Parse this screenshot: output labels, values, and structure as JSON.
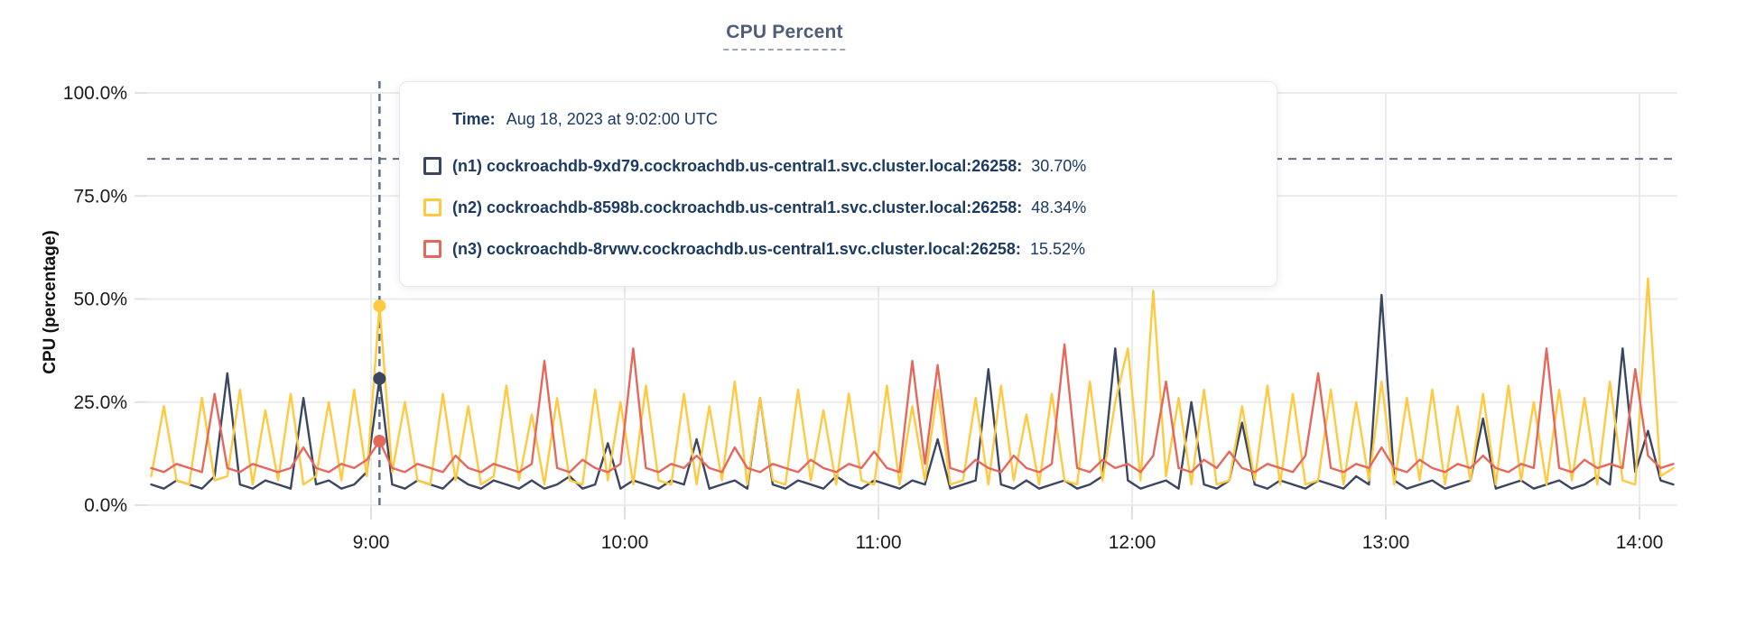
{
  "title": "CPU Percent",
  "y_axis_title": "CPU (percentage)",
  "tooltip": {
    "time_label": "Time:",
    "time_value": "Aug 18, 2023 at 9:02:00 UTC",
    "series": [
      {
        "label": "(n1) cockroachdb-9xd79.cockroachdb.us-central1.svc.cluster.local:26258:",
        "value": "30.70%"
      },
      {
        "label": "(n2) cockroachdb-8598b.cockroachdb.us-central1.svc.cluster.local:26258:",
        "value": "48.34%"
      },
      {
        "label": "(n3) cockroachdb-8rvwv.cockroachdb.us-central1.svc.cluster.local:26258:",
        "value": "15.52%"
      }
    ]
  },
  "colors": {
    "title": "#4e5d78",
    "tooltip_text": "#1c3a63",
    "grid": "#ebebeb",
    "tick": "#e0e0e0",
    "axis_label": "#1b1b1b",
    "dashed_line": "#5b6e8c"
  },
  "chart_data": {
    "type": "line",
    "title": "CPU Percent",
    "xlabel": "",
    "ylabel": "CPU (percentage)",
    "ylim": [
      0,
      100
    ],
    "y_ticks": [
      "100.0%",
      "75.0%",
      "50.0%",
      "25.0%",
      "0.0%"
    ],
    "x_ticks": [
      "9:00",
      "10:00",
      "11:00",
      "12:00",
      "13:00",
      "14:00"
    ],
    "grid": true,
    "legend_position": "tooltip",
    "threshold_percent": 84,
    "x_start": "8:08",
    "step_minutes": 3,
    "hover": {
      "time": "9:02",
      "time_display": "Aug 18, 2023 at 9:02:00 UTC"
    },
    "series": [
      {
        "name": "(n1) cockroachdb-9xd79.cockroachdb.us-central1.svc.cluster.local:26258",
        "color": "#3b4660",
        "hover_value": 30.7,
        "values": [
          5,
          4,
          6,
          5,
          4,
          7,
          32,
          5,
          4,
          6,
          5,
          4,
          26,
          5,
          6,
          4,
          5,
          8,
          30.7,
          5,
          4,
          6,
          5,
          4,
          7,
          5,
          4,
          6,
          5,
          4,
          6,
          4,
          5,
          7,
          4,
          5,
          15,
          4,
          6,
          5,
          4,
          6,
          5,
          16,
          4,
          5,
          6,
          4,
          26,
          5,
          4,
          6,
          5,
          4,
          7,
          5,
          4,
          6,
          5,
          4,
          6,
          5,
          16,
          4,
          5,
          6,
          33,
          5,
          4,
          6,
          4,
          5,
          6,
          4,
          5,
          7,
          38,
          6,
          4,
          5,
          6,
          4,
          25,
          5,
          4,
          6,
          20,
          5,
          4,
          6,
          5,
          4,
          6,
          5,
          4,
          7,
          5,
          51,
          6,
          4,
          5,
          6,
          4,
          5,
          6,
          21,
          4,
          5,
          6,
          4,
          5,
          6,
          4,
          5,
          7,
          5,
          38,
          8,
          18,
          6,
          5
        ]
      },
      {
        "name": "(n2) cockroachdb-8598b.cockroachdb.us-central1.svc.cluster.local:26258",
        "color": "#ffc940",
        "hover_value": 48.34,
        "values": [
          7,
          24,
          6,
          5,
          26,
          6,
          7,
          28,
          5,
          23,
          6,
          27,
          5,
          7,
          25,
          6,
          28,
          7,
          48.34,
          8,
          25,
          6,
          5,
          27,
          6,
          24,
          5,
          7,
          29,
          6,
          22,
          5,
          26,
          6,
          5,
          28,
          6,
          25,
          5,
          29,
          6,
          5,
          27,
          5,
          24,
          6,
          30,
          5,
          26,
          6,
          5,
          28,
          6,
          23,
          5,
          27,
          6,
          5,
          29,
          5,
          24,
          6,
          28,
          5,
          6,
          26,
          5,
          29,
          6,
          22,
          5,
          27,
          6,
          5,
          30,
          6,
          25,
          38,
          6,
          52,
          7,
          26,
          5,
          28,
          5,
          6,
          24,
          6,
          29,
          5,
          27,
          5,
          6,
          28,
          5,
          25,
          6,
          30,
          5,
          26,
          6,
          28,
          5,
          24,
          6,
          27,
          5,
          29,
          6,
          25,
          5,
          28,
          6,
          26,
          5,
          30,
          6,
          5,
          55,
          7,
          9
        ]
      },
      {
        "name": "(n3) cockroachdb-8rvwv.cockroachdb.us-central1.svc.cluster.local:26258",
        "color": "#e5685c",
        "hover_value": 15.52,
        "values": [
          9,
          8,
          10,
          9,
          8,
          27,
          9,
          8,
          10,
          9,
          8,
          9,
          14,
          9,
          8,
          10,
          9,
          11,
          15.52,
          9,
          8,
          10,
          9,
          8,
          12,
          9,
          8,
          10,
          9,
          8,
          10,
          35,
          9,
          8,
          11,
          9,
          8,
          10,
          38,
          9,
          8,
          10,
          9,
          12,
          9,
          8,
          14,
          9,
          8,
          10,
          9,
          8,
          11,
          9,
          8,
          10,
          9,
          13,
          9,
          8,
          35,
          10,
          34,
          9,
          8,
          11,
          9,
          8,
          12,
          9,
          8,
          10,
          39,
          9,
          8,
          11,
          9,
          10,
          8,
          12,
          30,
          9,
          8,
          11,
          9,
          13,
          9,
          8,
          10,
          9,
          8,
          12,
          32,
          9,
          8,
          10,
          9,
          14,
          9,
          8,
          11,
          9,
          8,
          10,
          9,
          12,
          9,
          8,
          10,
          9,
          38,
          9,
          8,
          11,
          9,
          10,
          9,
          33,
          12,
          9,
          10
        ]
      }
    ]
  }
}
